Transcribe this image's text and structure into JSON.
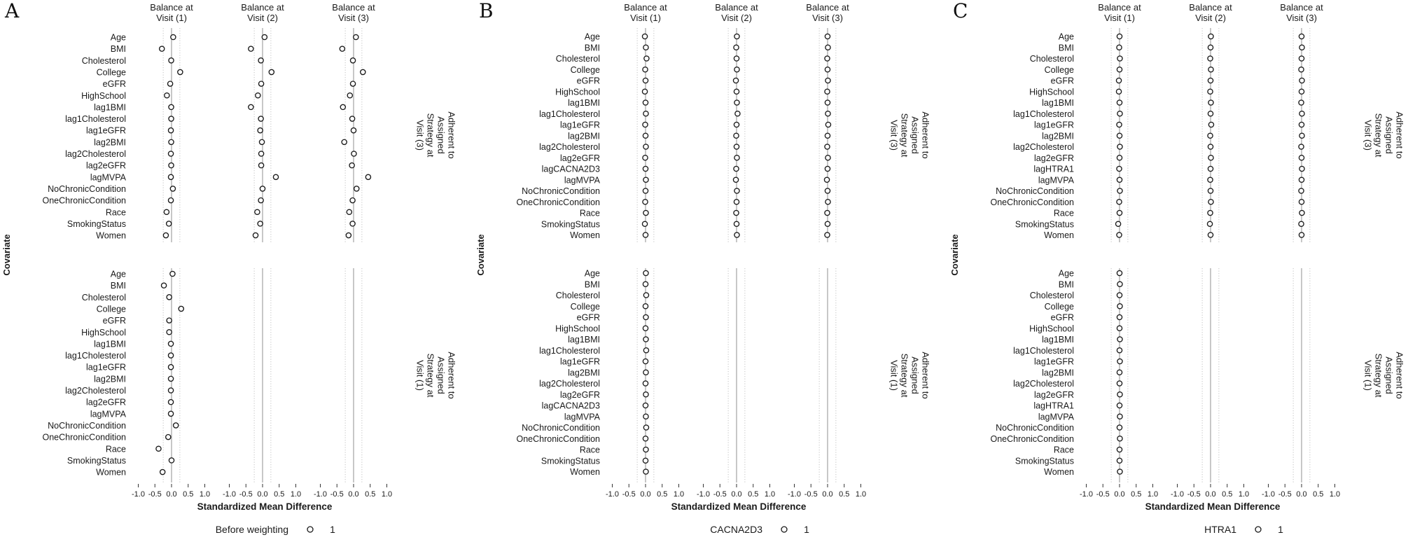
{
  "axes": {
    "x_title": "Standardized Mean Difference",
    "y_title": "Covariate",
    "x_ticks": [
      "-1.0",
      "-0.5",
      "0.0",
      "0.5",
      "1.0"
    ],
    "x_tick_values": [
      -1.0,
      -0.5,
      0.0,
      0.5,
      1.0
    ],
    "x_range": [
      -1.2,
      1.2
    ],
    "threshold_lines": [
      -0.25,
      0.25
    ]
  },
  "column_headers": [
    {
      "line1": "Balance at",
      "line2": "Visit (1)"
    },
    {
      "line1": "Balance at",
      "line2": "Visit (2)"
    },
    {
      "line1": "Balance at",
      "line2": "Visit (3)"
    }
  ],
  "colors": {
    "point_stroke": "#1a1a1a",
    "point_fill": "#ffffff",
    "zero_line": "#999999",
    "threshold_line": "#c4c4c4",
    "tick_text": "#404040",
    "text": "#1a1a1a",
    "background": "#ffffff"
  },
  "chart_data": [
    {
      "type": "scatter",
      "panel_label": "A",
      "legend": {
        "title": "Before weighting",
        "symbol": "open-circle",
        "key_label": "1"
      },
      "covariates": [
        "Age",
        "BMI",
        "Cholesterol",
        "College",
        "eGFR",
        "HighSchool",
        "lag1BMI",
        "lag1Cholesterol",
        "lag1eGFR",
        "lag2BMI",
        "lag2Cholesterol",
        "lag2eGFR",
        "lagMVPA",
        "NoChronicCondition",
        "OneChronicCondition",
        "Race",
        "SmokingStatus",
        "Women"
      ],
      "facets": [
        {
          "strip_lines": [
            "Adherent to",
            "Assigned",
            "Strategy at",
            "Visit (3)"
          ],
          "series": {
            "visit1": [
              0.05,
              -0.29,
              -0.01,
              0.26,
              -0.04,
              -0.14,
              -0.01,
              -0.01,
              -0.02,
              -0.01,
              -0.02,
              -0.01,
              -0.02,
              0.04,
              -0.02,
              -0.15,
              -0.08,
              -0.17
            ],
            "visit2": [
              0.06,
              -0.35,
              -0.05,
              0.27,
              -0.04,
              -0.14,
              -0.35,
              -0.05,
              -0.07,
              -0.02,
              -0.04,
              -0.04,
              0.4,
              0.0,
              -0.05,
              -0.16,
              -0.07,
              -0.21
            ],
            "visit3": [
              0.07,
              -0.34,
              -0.02,
              0.28,
              -0.02,
              -0.11,
              -0.32,
              -0.04,
              0.0,
              -0.28,
              0.01,
              -0.05,
              0.44,
              0.09,
              -0.03,
              -0.13,
              -0.03,
              -0.15
            ]
          }
        },
        {
          "strip_lines": [
            "Adherent to",
            "Assigned",
            "Strategy at",
            "Visit (1)"
          ],
          "series": {
            "visit1": [
              0.03,
              -0.23,
              -0.07,
              0.29,
              -0.07,
              -0.07,
              -0.02,
              -0.02,
              -0.02,
              -0.02,
              -0.02,
              -0.02,
              -0.02,
              0.13,
              -0.1,
              -0.39,
              0.0,
              -0.27
            ],
            "visit2": null,
            "visit3": null
          }
        }
      ]
    },
    {
      "type": "scatter",
      "panel_label": "B",
      "legend": {
        "title": "CACNA2D3",
        "symbol": "open-circle",
        "key_label": "1"
      },
      "covariates": [
        "Age",
        "BMI",
        "Cholesterol",
        "College",
        "eGFR",
        "HighSchool",
        "lag1BMI",
        "lag1Cholesterol",
        "lag1eGFR",
        "lag2BMI",
        "lag2Cholesterol",
        "lag2eGFR",
        "lagCACNA2D3",
        "lagMVPA",
        "NoChronicCondition",
        "OneChronicCondition",
        "Race",
        "SmokingStatus",
        "Women"
      ],
      "facets": [
        {
          "strip_lines": [
            "Adherent to",
            "Assigned",
            "Strategy at",
            "Visit (3)"
          ],
          "series": {
            "visit1": [
              -0.02,
              0.01,
              0.03,
              -0.01,
              0.0,
              -0.02,
              0.0,
              0.01,
              -0.01,
              0.0,
              0.01,
              -0.01,
              0.0,
              0.01,
              0.0,
              -0.01,
              0.01,
              -0.02,
              0.0
            ],
            "visit2": [
              0.01,
              -0.01,
              0.0,
              0.01,
              -0.02,
              0.0,
              0.01,
              0.03,
              0.0,
              -0.01,
              0.0,
              0.01,
              -0.01,
              -0.02,
              0.01,
              0.0,
              -0.01,
              0.0,
              0.01
            ],
            "visit3": [
              0.0,
              0.01,
              -0.01,
              0.0,
              0.01,
              -0.01,
              0.0,
              0.01,
              0.02,
              0.0,
              -0.01,
              0.01,
              0.0,
              -0.02,
              0.0,
              0.01,
              -0.01,
              0.0,
              -0.01
            ]
          }
        },
        {
          "strip_lines": [
            "Adherent to",
            "Assigned",
            "Strategy at",
            "Visit (1)"
          ],
          "series": {
            "visit1": [
              0.01,
              0.0,
              0.02,
              0.0,
              0.01,
              0.0,
              0.01,
              0.02,
              0.0,
              0.01,
              0.0,
              0.01,
              0.0,
              0.01,
              0.02,
              0.0,
              0.01,
              0.0,
              0.01
            ],
            "visit2": null,
            "visit3": null
          }
        }
      ]
    },
    {
      "type": "scatter",
      "panel_label": "C",
      "legend": {
        "title": "HTRA1",
        "symbol": "open-circle",
        "key_label": "1"
      },
      "covariates": [
        "Age",
        "BMI",
        "Cholesterol",
        "College",
        "eGFR",
        "HighSchool",
        "lag1BMI",
        "lag1Cholesterol",
        "lag1eGFR",
        "lag2BMI",
        "lag2Cholesterol",
        "lag2eGFR",
        "lagHTRA1",
        "lagMVPA",
        "NoChronicCondition",
        "OneChronicCondition",
        "Race",
        "SmokingStatus",
        "Women"
      ],
      "facets": [
        {
          "strip_lines": [
            "Adherent to",
            "Assigned",
            "Strategy at",
            "Visit (3)"
          ],
          "series": {
            "visit1": [
              0.0,
              -0.01,
              0.01,
              0.0,
              -0.02,
              -0.02,
              0.0,
              0.01,
              -0.01,
              0.0,
              0.01,
              0.0,
              -0.01,
              0.0,
              0.01,
              -0.01,
              0.0,
              -0.04,
              -0.01
            ],
            "visit2": [
              0.01,
              0.0,
              -0.01,
              0.01,
              0.0,
              -0.01,
              0.01,
              0.0,
              0.02,
              -0.01,
              0.0,
              0.01,
              0.0,
              -0.01,
              0.0,
              0.01,
              -0.01,
              -0.02,
              0.0
            ],
            "visit3": [
              0.0,
              0.01,
              0.0,
              -0.01,
              0.01,
              0.0,
              -0.01,
              0.01,
              0.0,
              0.01,
              -0.01,
              0.0,
              0.01,
              0.0,
              -0.01,
              0.0,
              0.01,
              -0.01,
              0.0
            ]
          }
        },
        {
          "strip_lines": [
            "Adherent to",
            "Assigned",
            "Strategy at",
            "Visit (1)"
          ],
          "series": {
            "visit1": [
              0.0,
              0.01,
              0.0,
              0.01,
              0.0,
              0.0,
              0.01,
              0.0,
              0.01,
              0.0,
              0.0,
              0.01,
              0.0,
              0.01,
              0.0,
              0.01,
              0.0,
              0.0,
              0.01
            ],
            "visit2": null,
            "visit3": null
          }
        }
      ]
    }
  ]
}
